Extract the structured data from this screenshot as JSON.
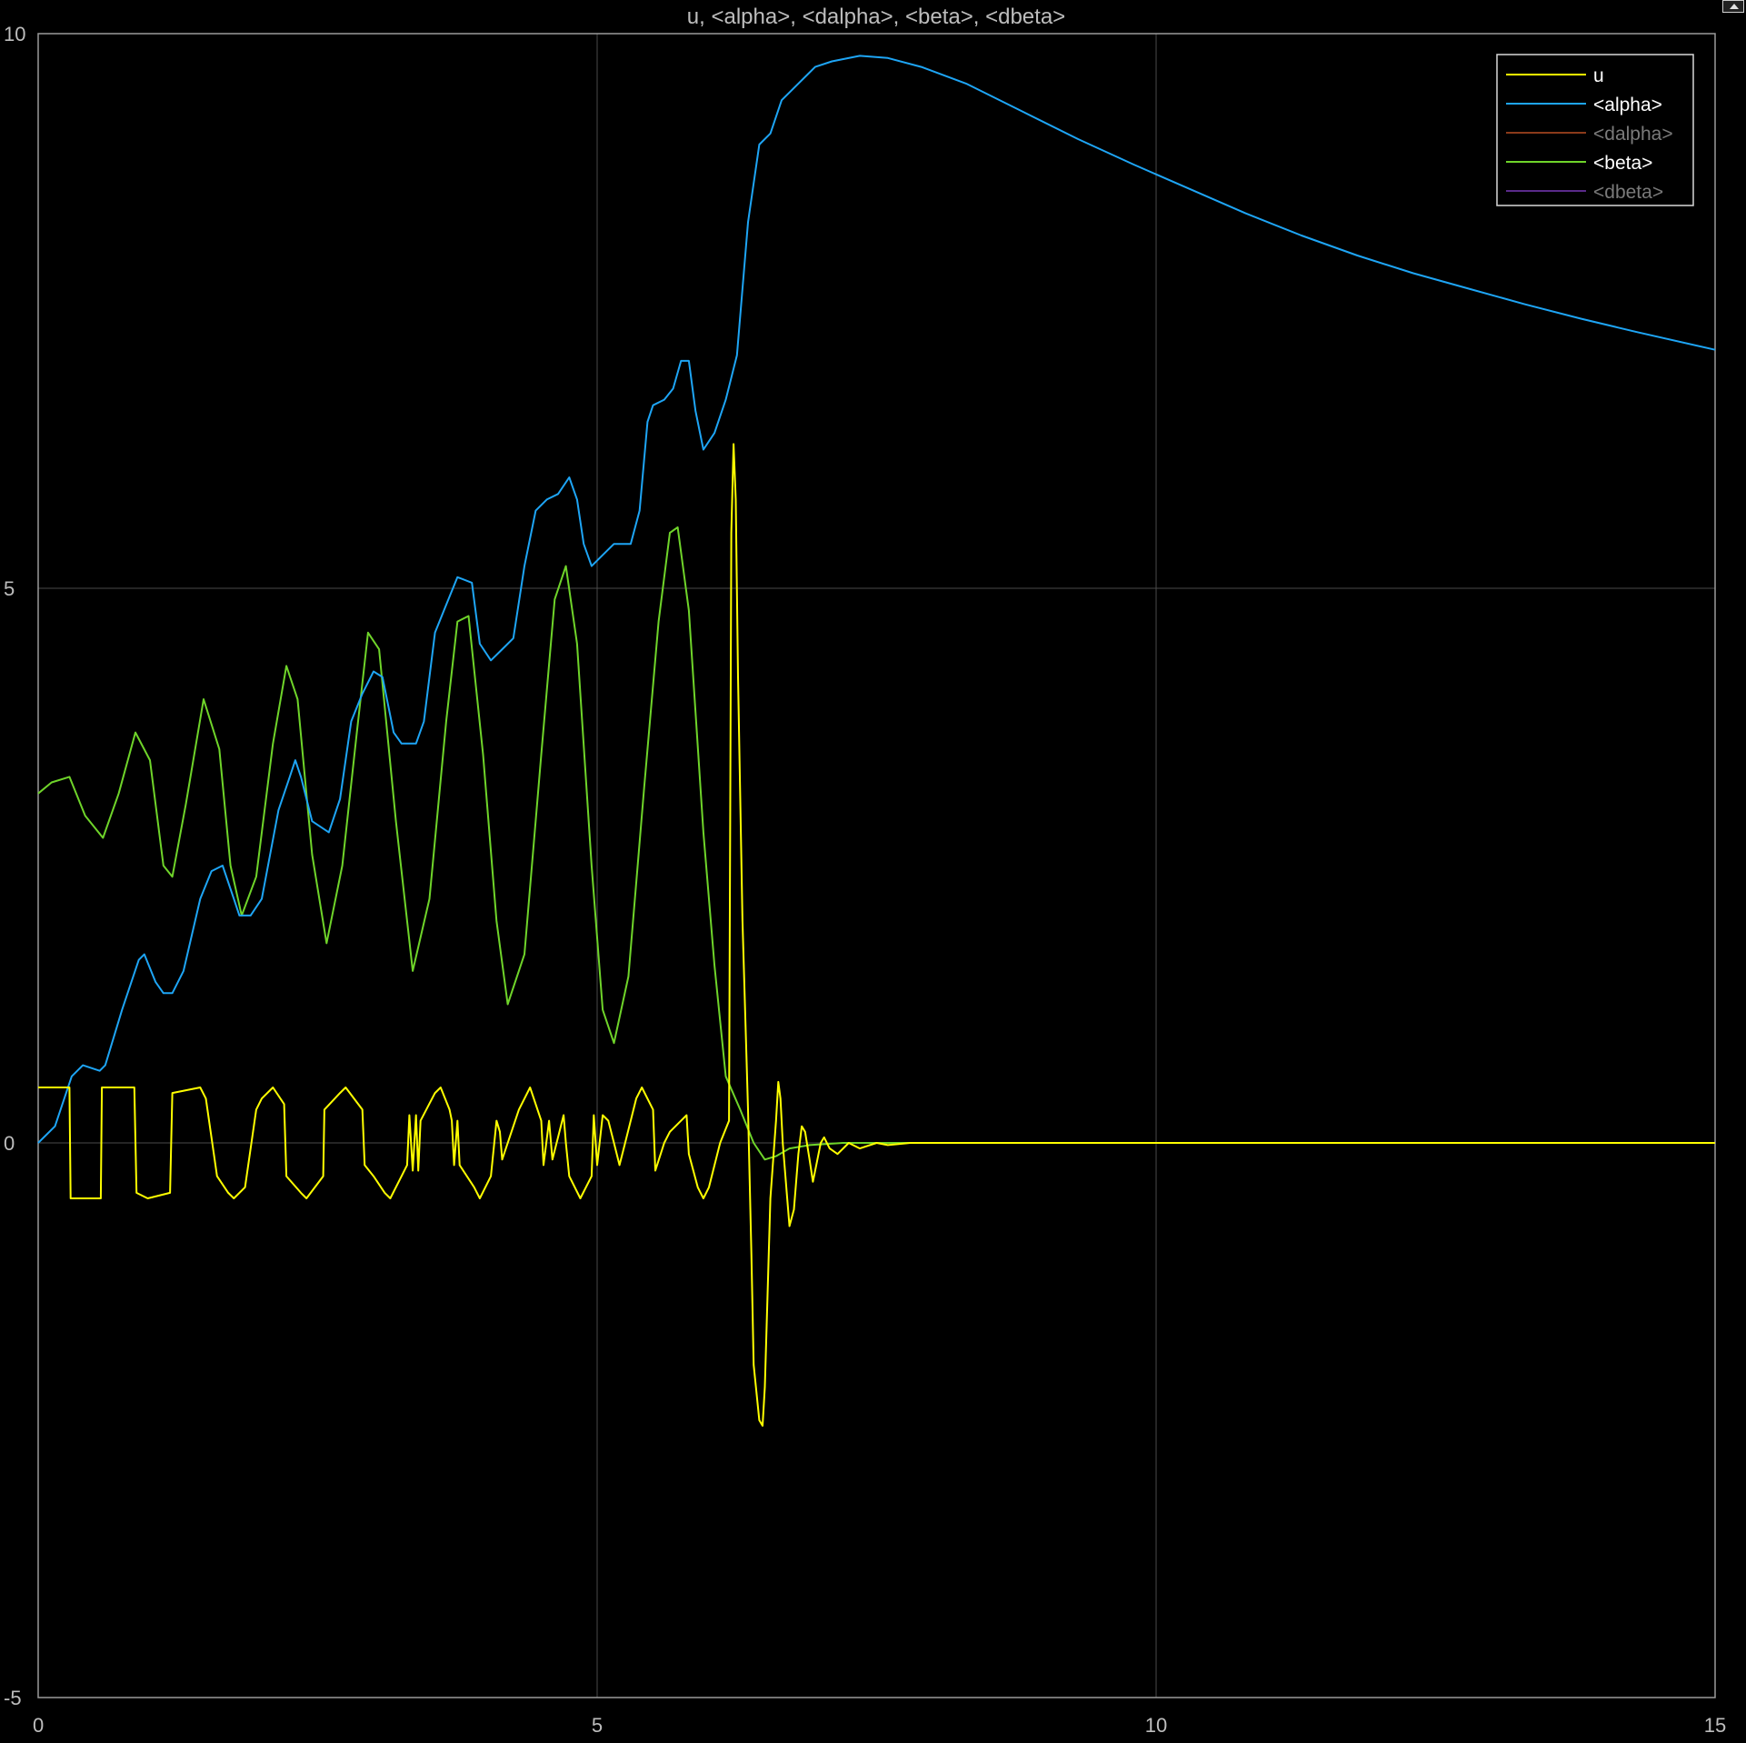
{
  "window": {
    "title": "u, <alpha>, <dalpha>, <beta>, <dbeta>",
    "corner_icon": "undock-icon"
  },
  "chart_data": {
    "type": "line",
    "title": "u, <alpha>, <dalpha>, <beta>, <dbeta>",
    "xlabel": "",
    "ylabel": "",
    "xlim": [
      0,
      15
    ],
    "ylim": [
      -5,
      10
    ],
    "xticks": [
      "0",
      "5",
      "10",
      "15"
    ],
    "yticks": [
      "-5",
      "0",
      "5",
      "10"
    ],
    "grid": true,
    "legend_position": "top-right",
    "background": "#000000",
    "series": [
      {
        "name": "u",
        "color": "#ffff00",
        "enabled": true,
        "points": [
          [
            0,
            0.5
          ],
          [
            0.28,
            0.5
          ],
          [
            0.29,
            -0.5
          ],
          [
            0.56,
            -0.5
          ],
          [
            0.57,
            0.5
          ],
          [
            0.86,
            0.5
          ],
          [
            0.88,
            -0.45
          ],
          [
            0.98,
            -0.5
          ],
          [
            1.18,
            -0.45
          ],
          [
            1.2,
            0.45
          ],
          [
            1.45,
            0.5
          ],
          [
            1.5,
            0.4
          ],
          [
            1.6,
            -0.3
          ],
          [
            1.7,
            -0.45
          ],
          [
            1.75,
            -0.5
          ],
          [
            1.85,
            -0.4
          ],
          [
            1.95,
            0.3
          ],
          [
            2.0,
            0.4
          ],
          [
            2.1,
            0.5
          ],
          [
            2.2,
            0.35
          ],
          [
            2.22,
            -0.3
          ],
          [
            2.35,
            -0.45
          ],
          [
            2.4,
            -0.5
          ],
          [
            2.55,
            -0.3
          ],
          [
            2.56,
            0.3
          ],
          [
            2.7,
            0.45
          ],
          [
            2.75,
            0.5
          ],
          [
            2.9,
            0.3
          ],
          [
            2.92,
            -0.2
          ],
          [
            3.0,
            -0.3
          ],
          [
            3.1,
            -0.45
          ],
          [
            3.15,
            -0.5
          ],
          [
            3.25,
            -0.3
          ],
          [
            3.3,
            -0.2
          ],
          [
            3.32,
            0.25
          ],
          [
            3.35,
            -0.25
          ],
          [
            3.38,
            0.25
          ],
          [
            3.4,
            -0.25
          ],
          [
            3.42,
            0.2
          ],
          [
            3.55,
            0.45
          ],
          [
            3.6,
            0.5
          ],
          [
            3.68,
            0.3
          ],
          [
            3.7,
            0.2
          ],
          [
            3.72,
            -0.2
          ],
          [
            3.75,
            0.2
          ],
          [
            3.77,
            -0.2
          ],
          [
            3.9,
            -0.4
          ],
          [
            3.95,
            -0.5
          ],
          [
            4.05,
            -0.3
          ],
          [
            4.1,
            0.2
          ],
          [
            4.13,
            0.1
          ],
          [
            4.15,
            -0.15
          ],
          [
            4.3,
            0.3
          ],
          [
            4.4,
            0.5
          ],
          [
            4.5,
            0.2
          ],
          [
            4.52,
            -0.2
          ],
          [
            4.57,
            0.2
          ],
          [
            4.6,
            -0.15
          ],
          [
            4.7,
            0.25
          ],
          [
            4.72,
            0.0
          ],
          [
            4.75,
            -0.3
          ],
          [
            4.85,
            -0.5
          ],
          [
            4.95,
            -0.3
          ],
          [
            4.97,
            0.25
          ],
          [
            5.0,
            -0.2
          ],
          [
            5.05,
            0.25
          ],
          [
            5.1,
            0.2
          ],
          [
            5.15,
            0.0
          ],
          [
            5.2,
            -0.2
          ],
          [
            5.25,
            0.0
          ],
          [
            5.35,
            0.4
          ],
          [
            5.4,
            0.5
          ],
          [
            5.5,
            0.3
          ],
          [
            5.52,
            -0.25
          ],
          [
            5.6,
            0.0
          ],
          [
            5.65,
            0.1
          ],
          [
            5.75,
            0.2
          ],
          [
            5.8,
            0.25
          ],
          [
            5.82,
            -0.1
          ],
          [
            5.9,
            -0.4
          ],
          [
            5.95,
            -0.5
          ],
          [
            6.0,
            -0.4
          ],
          [
            6.1,
            0.0
          ],
          [
            6.18,
            0.2
          ],
          [
            6.2,
            5.5
          ],
          [
            6.22,
            6.3
          ],
          [
            6.24,
            5.8
          ],
          [
            6.26,
            4.2
          ],
          [
            6.3,
            2.0
          ],
          [
            6.35,
            0.3
          ],
          [
            6.38,
            -1.0
          ],
          [
            6.4,
            -2.0
          ],
          [
            6.45,
            -2.5
          ],
          [
            6.48,
            -2.55
          ],
          [
            6.5,
            -2.2
          ],
          [
            6.55,
            -0.5
          ],
          [
            6.6,
            0.2
          ],
          [
            6.62,
            0.55
          ],
          [
            6.64,
            0.4
          ],
          [
            6.66,
            0.0
          ],
          [
            6.7,
            -0.5
          ],
          [
            6.72,
            -0.75
          ],
          [
            6.76,
            -0.6
          ],
          [
            6.8,
            -0.1
          ],
          [
            6.83,
            0.15
          ],
          [
            6.86,
            0.1
          ],
          [
            6.9,
            -0.15
          ],
          [
            6.93,
            -0.35
          ],
          [
            6.96,
            -0.2
          ],
          [
            7.0,
            0.0
          ],
          [
            7.03,
            0.05
          ],
          [
            7.08,
            -0.05
          ],
          [
            7.15,
            -0.1
          ],
          [
            7.25,
            0.0
          ],
          [
            7.35,
            -0.05
          ],
          [
            7.5,
            0.0
          ],
          [
            7.6,
            -0.02
          ],
          [
            7.8,
            0.0
          ],
          [
            15,
            0.0
          ]
        ]
      },
      {
        "name": "<alpha>",
        "color": "#1ea5f5",
        "enabled": true,
        "points": [
          [
            0,
            0
          ],
          [
            0.15,
            0.15
          ],
          [
            0.3,
            0.6
          ],
          [
            0.4,
            0.7
          ],
          [
            0.55,
            0.65
          ],
          [
            0.6,
            0.7
          ],
          [
            0.75,
            1.2
          ],
          [
            0.9,
            1.65
          ],
          [
            0.95,
            1.7
          ],
          [
            1.05,
            1.45
          ],
          [
            1.12,
            1.35
          ],
          [
            1.2,
            1.35
          ],
          [
            1.3,
            1.55
          ],
          [
            1.45,
            2.2
          ],
          [
            1.55,
            2.45
          ],
          [
            1.65,
            2.5
          ],
          [
            1.75,
            2.2
          ],
          [
            1.8,
            2.05
          ],
          [
            1.9,
            2.05
          ],
          [
            2.0,
            2.2
          ],
          [
            2.15,
            3.0
          ],
          [
            2.25,
            3.3
          ],
          [
            2.3,
            3.45
          ],
          [
            2.35,
            3.3
          ],
          [
            2.45,
            2.9
          ],
          [
            2.6,
            2.8
          ],
          [
            2.7,
            3.1
          ],
          [
            2.8,
            3.8
          ],
          [
            2.9,
            4.05
          ],
          [
            3.0,
            4.25
          ],
          [
            3.08,
            4.2
          ],
          [
            3.18,
            3.7
          ],
          [
            3.25,
            3.6
          ],
          [
            3.38,
            3.6
          ],
          [
            3.45,
            3.8
          ],
          [
            3.55,
            4.6
          ],
          [
            3.65,
            4.85
          ],
          [
            3.75,
            5.1
          ],
          [
            3.88,
            5.05
          ],
          [
            3.95,
            4.5
          ],
          [
            4.05,
            4.35
          ],
          [
            4.15,
            4.45
          ],
          [
            4.25,
            4.55
          ],
          [
            4.35,
            5.2
          ],
          [
            4.45,
            5.7
          ],
          [
            4.55,
            5.8
          ],
          [
            4.65,
            5.85
          ],
          [
            4.75,
            6.0
          ],
          [
            4.82,
            5.8
          ],
          [
            4.88,
            5.4
          ],
          [
            4.95,
            5.2
          ],
          [
            5.05,
            5.3
          ],
          [
            5.15,
            5.4
          ],
          [
            5.3,
            5.4
          ],
          [
            5.38,
            5.7
          ],
          [
            5.45,
            6.5
          ],
          [
            5.5,
            6.65
          ],
          [
            5.6,
            6.7
          ],
          [
            5.68,
            6.8
          ],
          [
            5.75,
            7.05
          ],
          [
            5.82,
            7.05
          ],
          [
            5.88,
            6.6
          ],
          [
            5.95,
            6.25
          ],
          [
            6.05,
            6.4
          ],
          [
            6.15,
            6.7
          ],
          [
            6.25,
            7.1
          ],
          [
            6.35,
            8.3
          ],
          [
            6.45,
            9.0
          ],
          [
            6.55,
            9.1
          ],
          [
            6.65,
            9.4
          ],
          [
            6.8,
            9.55
          ],
          [
            6.95,
            9.7
          ],
          [
            7.1,
            9.75
          ],
          [
            7.35,
            9.8
          ],
          [
            7.6,
            9.78
          ],
          [
            7.9,
            9.7
          ],
          [
            8.3,
            9.55
          ],
          [
            8.8,
            9.3
          ],
          [
            9.3,
            9.05
          ],
          [
            9.8,
            8.82
          ],
          [
            10.3,
            8.6
          ],
          [
            10.8,
            8.38
          ],
          [
            11.3,
            8.18
          ],
          [
            11.8,
            8.0
          ],
          [
            12.3,
            7.84
          ],
          [
            12.8,
            7.7
          ],
          [
            13.3,
            7.56
          ],
          [
            13.8,
            7.43
          ],
          [
            14.3,
            7.31
          ],
          [
            15,
            7.15
          ]
        ]
      },
      {
        "name": "<dalpha>",
        "color": "#8b3a1a",
        "enabled": false,
        "points": []
      },
      {
        "name": "<beta>",
        "color": "#6fd42a",
        "enabled": true,
        "points": [
          [
            0,
            3.15
          ],
          [
            0.12,
            3.25
          ],
          [
            0.28,
            3.3
          ],
          [
            0.42,
            2.95
          ],
          [
            0.58,
            2.75
          ],
          [
            0.72,
            3.15
          ],
          [
            0.87,
            3.7
          ],
          [
            1.0,
            3.45
          ],
          [
            1.12,
            2.5
          ],
          [
            1.2,
            2.4
          ],
          [
            1.32,
            3.05
          ],
          [
            1.48,
            4.0
          ],
          [
            1.62,
            3.55
          ],
          [
            1.72,
            2.5
          ],
          [
            1.82,
            2.05
          ],
          [
            1.95,
            2.4
          ],
          [
            2.1,
            3.6
          ],
          [
            2.22,
            4.3
          ],
          [
            2.32,
            4.0
          ],
          [
            2.45,
            2.6
          ],
          [
            2.58,
            1.8
          ],
          [
            2.72,
            2.5
          ],
          [
            2.85,
            3.7
          ],
          [
            2.95,
            4.6
          ],
          [
            3.05,
            4.45
          ],
          [
            3.2,
            2.9
          ],
          [
            3.35,
            1.55
          ],
          [
            3.5,
            2.2
          ],
          [
            3.65,
            3.8
          ],
          [
            3.75,
            4.7
          ],
          [
            3.85,
            4.75
          ],
          [
            3.98,
            3.5
          ],
          [
            4.1,
            2.0
          ],
          [
            4.2,
            1.25
          ],
          [
            4.35,
            1.7
          ],
          [
            4.5,
            3.5
          ],
          [
            4.62,
            4.9
          ],
          [
            4.72,
            5.2
          ],
          [
            4.82,
            4.5
          ],
          [
            4.95,
            2.5
          ],
          [
            5.05,
            1.2
          ],
          [
            5.15,
            0.9
          ],
          [
            5.28,
            1.5
          ],
          [
            5.42,
            3.2
          ],
          [
            5.55,
            4.7
          ],
          [
            5.65,
            5.5
          ],
          [
            5.72,
            5.55
          ],
          [
            5.82,
            4.8
          ],
          [
            5.95,
            2.8
          ],
          [
            6.05,
            1.6
          ],
          [
            6.15,
            0.6
          ],
          [
            6.28,
            0.3
          ],
          [
            6.4,
            0.0
          ],
          [
            6.5,
            -0.15
          ],
          [
            6.6,
            -0.12
          ],
          [
            6.72,
            -0.05
          ],
          [
            6.9,
            -0.02
          ],
          [
            7.2,
            0.0
          ],
          [
            15,
            0.0
          ]
        ]
      },
      {
        "name": "<dbeta>",
        "color": "#5a2a8a",
        "enabled": false,
        "points": []
      }
    ]
  }
}
